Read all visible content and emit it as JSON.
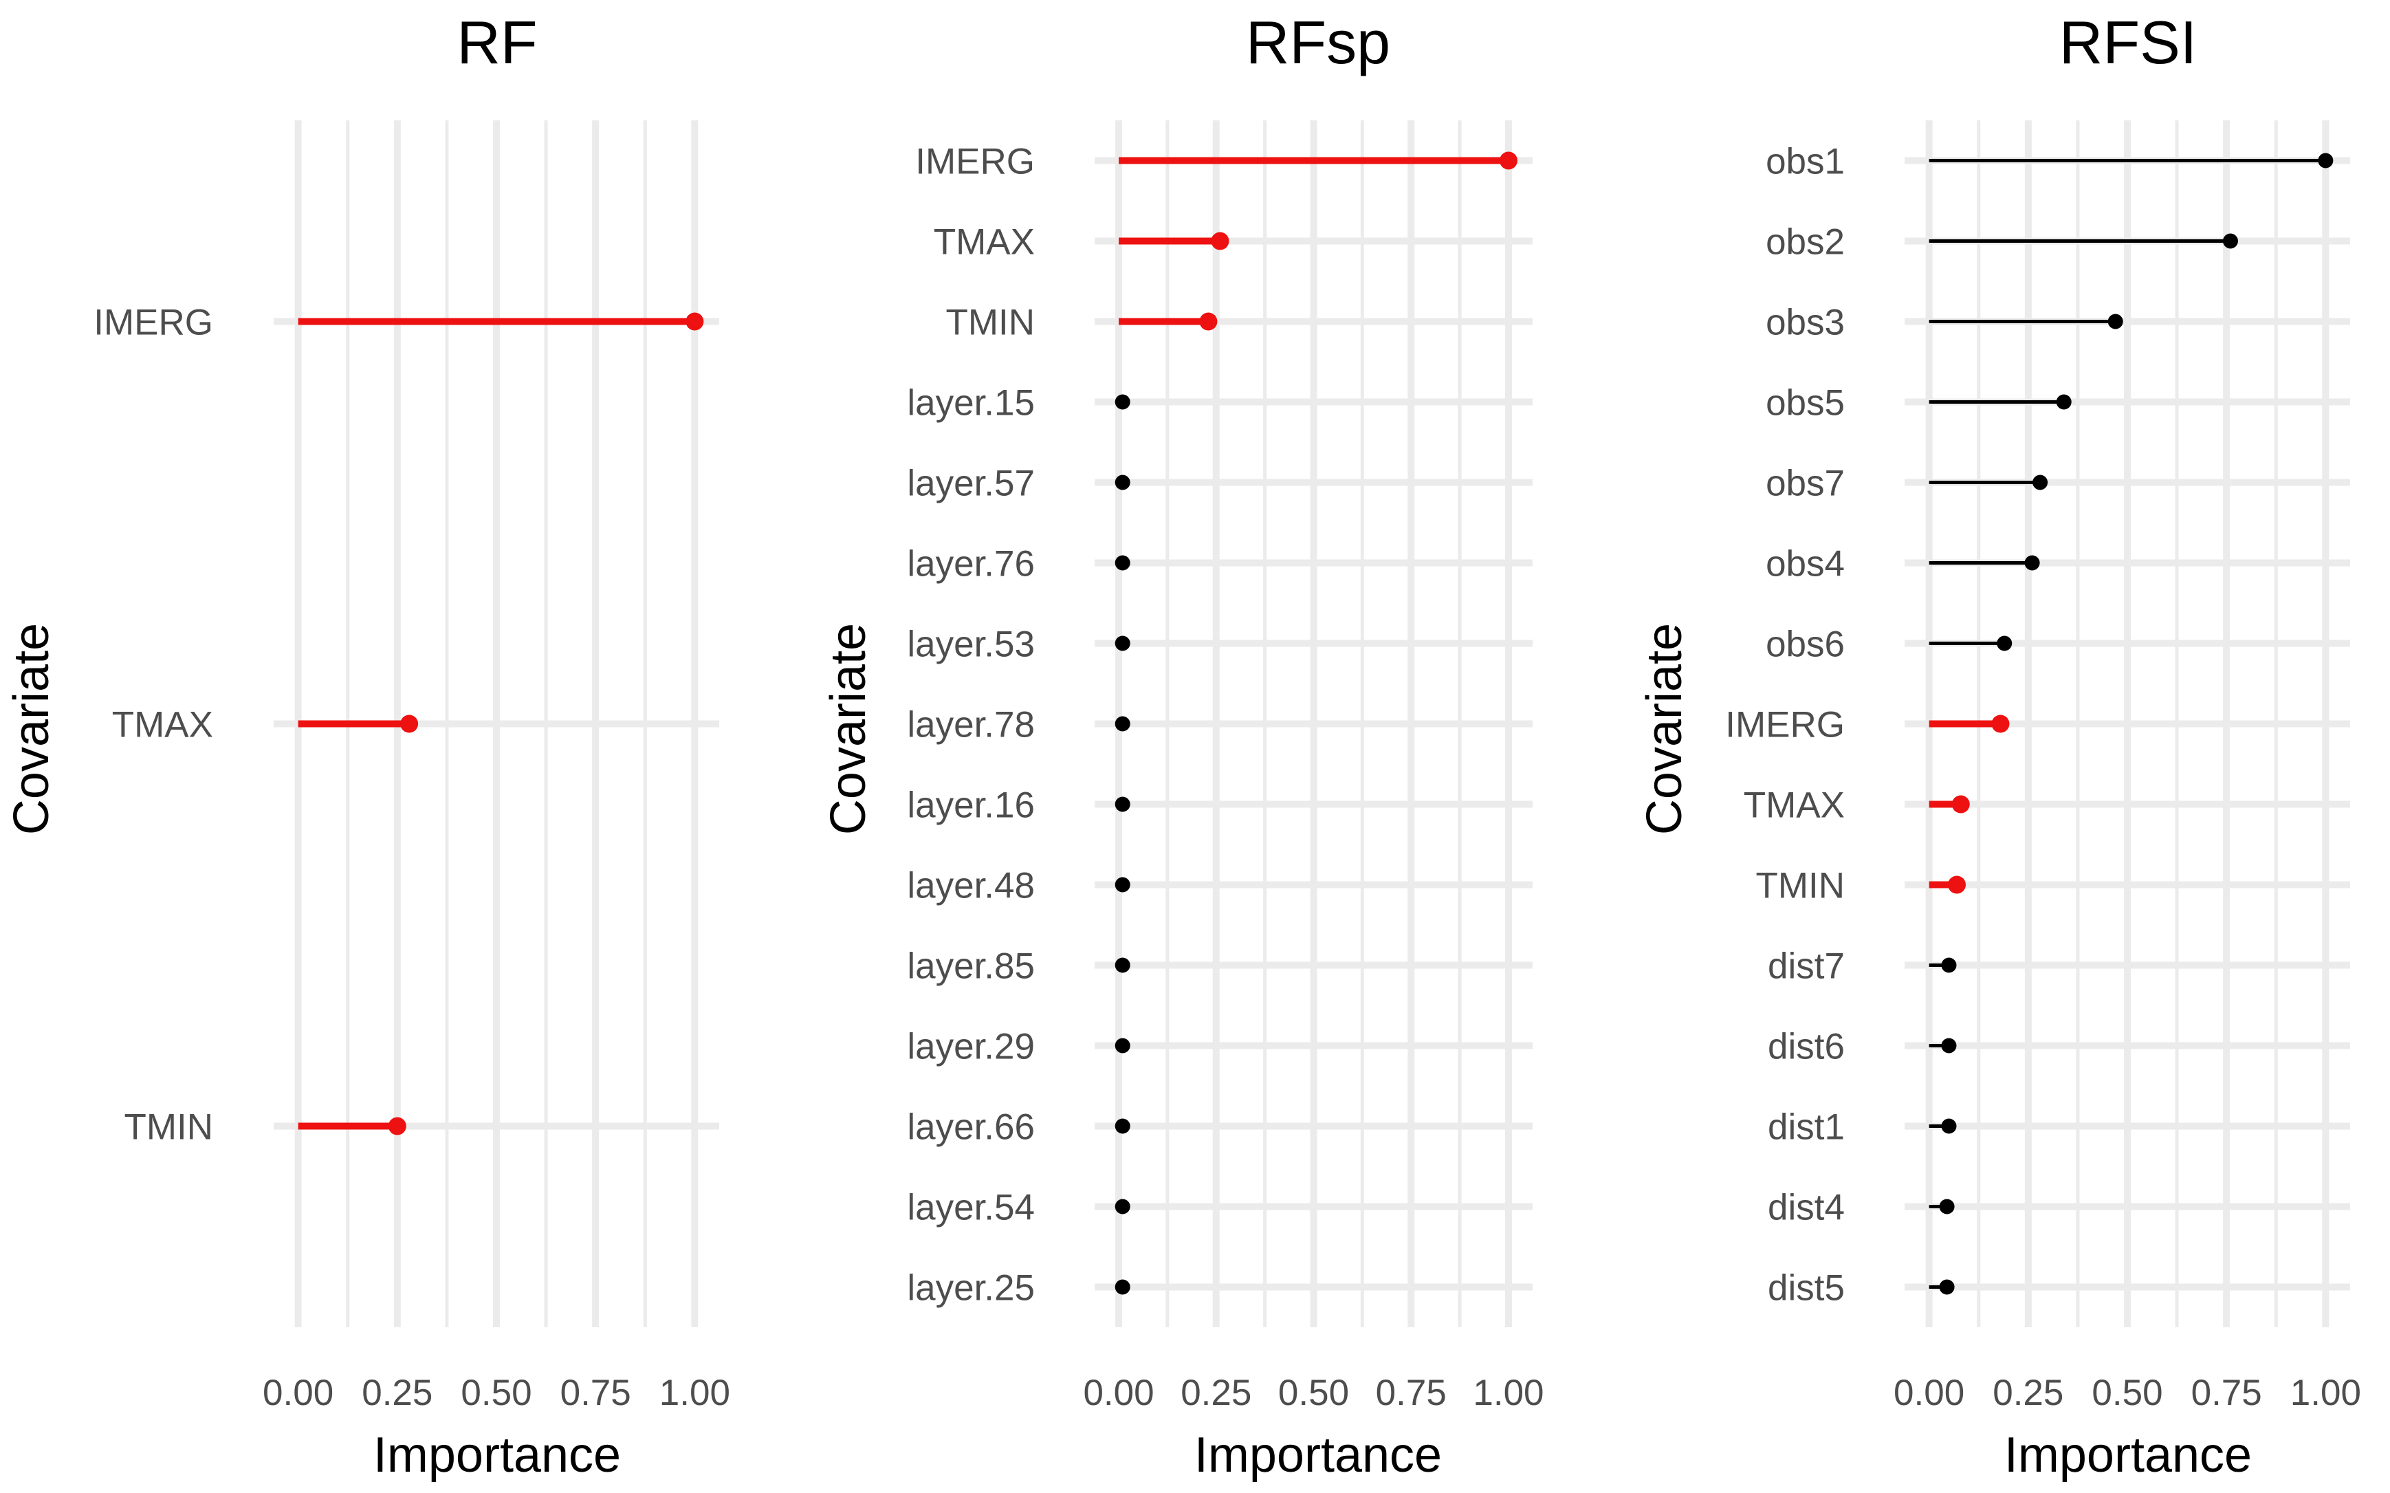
{
  "chart_data": [
    {
      "type": "lollipop",
      "title": "RF",
      "xlabel": "Importance",
      "ylabel": "Covariate",
      "xlim": [
        0,
        1
      ],
      "xticks": [
        "0.00",
        "0.25",
        "0.50",
        "0.75",
        "1.00"
      ],
      "categories": [
        "IMERG",
        "TMAX",
        "TMIN"
      ],
      "values": [
        1.0,
        0.28,
        0.25
      ],
      "colors": [
        "#ee1111",
        "#ee1111",
        "#ee1111"
      ]
    },
    {
      "type": "lollipop",
      "title": "RFsp",
      "xlabel": "Importance",
      "ylabel": "Covariate",
      "xlim": [
        0,
        1
      ],
      "xticks": [
        "0.00",
        "0.25",
        "0.50",
        "0.75",
        "1.00"
      ],
      "categories": [
        "IMERG",
        "TMAX",
        "TMIN",
        "layer.15",
        "layer.57",
        "layer.76",
        "layer.53",
        "layer.78",
        "layer.16",
        "layer.48",
        "layer.85",
        "layer.29",
        "layer.66",
        "layer.54",
        "layer.25"
      ],
      "values": [
        1.0,
        0.26,
        0.23,
        0.01,
        0.01,
        0.01,
        0.01,
        0.01,
        0.01,
        0.01,
        0.01,
        0.01,
        0.01,
        0.01,
        0.01
      ],
      "colors": [
        "#ee1111",
        "#ee1111",
        "#ee1111",
        "#000000",
        "#000000",
        "#000000",
        "#000000",
        "#000000",
        "#000000",
        "#000000",
        "#000000",
        "#000000",
        "#000000",
        "#000000",
        "#000000"
      ]
    },
    {
      "type": "lollipop",
      "title": "RFSI",
      "xlabel": "Importance",
      "ylabel": "Covariate",
      "xlim": [
        0,
        1
      ],
      "xticks": [
        "0.00",
        "0.25",
        "0.50",
        "0.75",
        "1.00"
      ],
      "categories": [
        "obs1",
        "obs2",
        "obs3",
        "obs5",
        "obs7",
        "obs4",
        "obs6",
        "IMERG",
        "TMAX",
        "TMIN",
        "dist7",
        "dist6",
        "dist1",
        "dist4",
        "dist5"
      ],
      "values": [
        1.0,
        0.76,
        0.47,
        0.34,
        0.28,
        0.26,
        0.19,
        0.18,
        0.08,
        0.07,
        0.05,
        0.05,
        0.05,
        0.045,
        0.045
      ],
      "colors": [
        "#000000",
        "#000000",
        "#000000",
        "#000000",
        "#000000",
        "#000000",
        "#000000",
        "#ee1111",
        "#ee1111",
        "#ee1111",
        "#000000",
        "#000000",
        "#000000",
        "#000000",
        "#000000"
      ]
    }
  ]
}
